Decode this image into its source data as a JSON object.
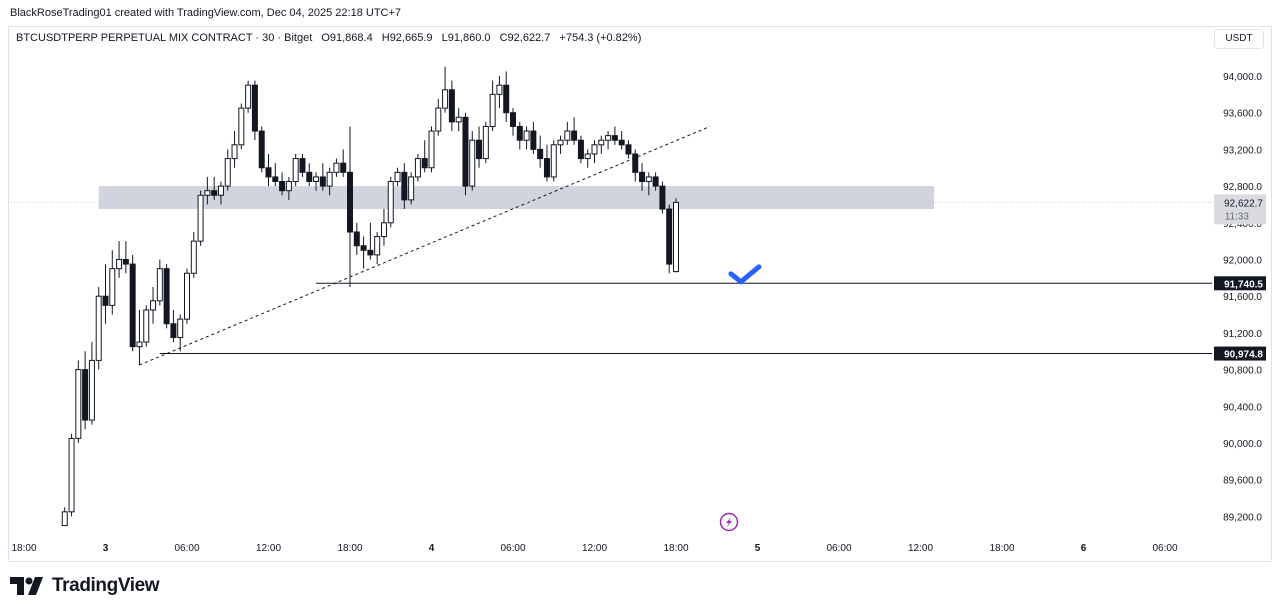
{
  "caption": "BlackRoseTrading01 created with TradingView.com, Dec 04, 2025 22:18 UTC+7",
  "legend": {
    "symbol": "BTCUSDTPERP PERPETUAL MIX CONTRACT · 30 · Bitget",
    "open": "O91,868.4",
    "high": "H92,665.9",
    "low": "L91,860.0",
    "close": "C92,622.7",
    "change": "+754.3 (+0.82%)"
  },
  "currency": "USDT",
  "brand": "TradingView",
  "colors": {
    "candle": "#131722",
    "zone": "#d1d4dc",
    "checkmark": "#2962ff",
    "flash_icon": "#9c27b0",
    "axis_text": "#131722",
    "grid_border": "#e0e3eb"
  },
  "chart_data": {
    "type": "candlestick",
    "interval": "30",
    "ylim": [
      89050,
      94400
    ],
    "y_ticks": [
      94000,
      93600,
      93200,
      92800,
      92400,
      92000,
      91600,
      91200,
      90800,
      90400,
      90000,
      89600,
      89200
    ],
    "y_tick_labels": [
      "94,000.0",
      "93,600.0",
      "93,200.0",
      "92,800.0",
      "92,400.0",
      "92,000.0",
      "91,600.0",
      "91,200.0",
      "90,800.0",
      "90,400.0",
      "90,000.0",
      "89,600.0",
      "89,200.0"
    ],
    "x_labels": [
      {
        "label": "18:00",
        "t": "2025-12-02 18:00"
      },
      {
        "label": "3",
        "t": "2025-12-03 00:00"
      },
      {
        "label": "06:00",
        "t": "2025-12-03 06:00"
      },
      {
        "label": "12:00",
        "t": "2025-12-03 12:00"
      },
      {
        "label": "18:00",
        "t": "2025-12-03 18:00"
      },
      {
        "label": "4",
        "t": "2025-12-04 00:00"
      },
      {
        "label": "06:00",
        "t": "2025-12-04 06:00"
      },
      {
        "label": "12:00",
        "t": "2025-12-04 12:00"
      },
      {
        "label": "18:00",
        "t": "2025-12-04 18:00"
      },
      {
        "label": "5",
        "t": "2025-12-05 00:00"
      },
      {
        "label": "06:00",
        "t": "2025-12-05 06:00"
      },
      {
        "label": "12:00",
        "t": "2025-12-05 12:00"
      },
      {
        "label": "18:00",
        "t": "2025-12-05 18:00"
      },
      {
        "label": "6",
        "t": "2025-12-06 00:00"
      },
      {
        "label": "06:00",
        "t": "2025-12-06 06:00"
      }
    ],
    "candles": [
      {
        "t": "2025-12-02 21:00",
        "o": 89100,
        "h": 89300,
        "l": 89100,
        "c": 89250
      },
      {
        "t": "2025-12-02 21:30",
        "o": 89250,
        "h": 90100,
        "l": 89200,
        "c": 90050
      },
      {
        "t": "2025-12-02 22:00",
        "o": 90050,
        "h": 90900,
        "l": 90000,
        "c": 90800
      },
      {
        "t": "2025-12-02 22:30",
        "o": 90800,
        "h": 91000,
        "l": 90150,
        "c": 90250
      },
      {
        "t": "2025-12-02 23:00",
        "o": 90250,
        "h": 91100,
        "l": 90200,
        "c": 90900
      },
      {
        "t": "2025-12-02 23:30",
        "o": 90900,
        "h": 91700,
        "l": 90800,
        "c": 91600
      },
      {
        "t": "2025-12-03 00:00",
        "o": 91600,
        "h": 91950,
        "l": 91300,
        "c": 91500
      },
      {
        "t": "2025-12-03 00:30",
        "o": 91500,
        "h": 92100,
        "l": 91400,
        "c": 91900
      },
      {
        "t": "2025-12-03 01:00",
        "o": 91900,
        "h": 92200,
        "l": 91800,
        "c": 92000
      },
      {
        "t": "2025-12-03 01:30",
        "o": 92000,
        "h": 92200,
        "l": 91850,
        "c": 91950
      },
      {
        "t": "2025-12-03 02:00",
        "o": 91950,
        "h": 92050,
        "l": 91000,
        "c": 91050
      },
      {
        "t": "2025-12-03 02:30",
        "o": 91050,
        "h": 91450,
        "l": 90850,
        "c": 91100
      },
      {
        "t": "2025-12-03 03:00",
        "o": 91100,
        "h": 91500,
        "l": 91050,
        "c": 91450
      },
      {
        "t": "2025-12-03 03:30",
        "o": 91450,
        "h": 91700,
        "l": 91300,
        "c": 91550
      },
      {
        "t": "2025-12-03 04:00",
        "o": 91550,
        "h": 92000,
        "l": 91500,
        "c": 91900
      },
      {
        "t": "2025-12-03 04:30",
        "o": 91900,
        "h": 91950,
        "l": 91250,
        "c": 91300
      },
      {
        "t": "2025-12-03 05:00",
        "o": 91300,
        "h": 91450,
        "l": 91100,
        "c": 91150
      },
      {
        "t": "2025-12-03 05:30",
        "o": 91150,
        "h": 91400,
        "l": 91000,
        "c": 91350
      },
      {
        "t": "2025-12-03 06:00",
        "o": 91350,
        "h": 91900,
        "l": 91300,
        "c": 91850
      },
      {
        "t": "2025-12-03 06:30",
        "o": 91850,
        "h": 92300,
        "l": 91800,
        "c": 92200
      },
      {
        "t": "2025-12-03 07:00",
        "o": 92200,
        "h": 92750,
        "l": 92150,
        "c": 92700
      },
      {
        "t": "2025-12-03 07:30",
        "o": 92700,
        "h": 92900,
        "l": 92600,
        "c": 92750
      },
      {
        "t": "2025-12-03 08:00",
        "o": 92750,
        "h": 92900,
        "l": 92650,
        "c": 92700
      },
      {
        "t": "2025-12-03 08:30",
        "o": 92700,
        "h": 92850,
        "l": 92600,
        "c": 92800
      },
      {
        "t": "2025-12-03 09:00",
        "o": 92800,
        "h": 93200,
        "l": 92750,
        "c": 93100
      },
      {
        "t": "2025-12-03 09:30",
        "o": 93100,
        "h": 93400,
        "l": 93000,
        "c": 93250
      },
      {
        "t": "2025-12-03 10:00",
        "o": 93250,
        "h": 93700,
        "l": 93200,
        "c": 93650
      },
      {
        "t": "2025-12-03 10:30",
        "o": 93650,
        "h": 93950,
        "l": 93600,
        "c": 93900
      },
      {
        "t": "2025-12-03 11:00",
        "o": 93900,
        "h": 93950,
        "l": 93300,
        "c": 93400
      },
      {
        "t": "2025-12-03 11:30",
        "o": 93400,
        "h": 93450,
        "l": 92950,
        "c": 93000
      },
      {
        "t": "2025-12-03 12:00",
        "o": 93000,
        "h": 93150,
        "l": 92800,
        "c": 92900
      },
      {
        "t": "2025-12-03 12:30",
        "o": 92900,
        "h": 93050,
        "l": 92800,
        "c": 92850
      },
      {
        "t": "2025-12-03 13:00",
        "o": 92850,
        "h": 92950,
        "l": 92700,
        "c": 92750
      },
      {
        "t": "2025-12-03 13:30",
        "o": 92750,
        "h": 92900,
        "l": 92650,
        "c": 92850
      },
      {
        "t": "2025-12-03 14:00",
        "o": 92850,
        "h": 93150,
        "l": 92800,
        "c": 93100
      },
      {
        "t": "2025-12-03 14:30",
        "o": 93100,
        "h": 93150,
        "l": 92900,
        "c": 92950
      },
      {
        "t": "2025-12-03 15:00",
        "o": 92950,
        "h": 93050,
        "l": 92800,
        "c": 92850
      },
      {
        "t": "2025-12-03 15:30",
        "o": 92850,
        "h": 92950,
        "l": 92750,
        "c": 92900
      },
      {
        "t": "2025-12-03 16:00",
        "o": 92900,
        "h": 93050,
        "l": 92750,
        "c": 92800
      },
      {
        "t": "2025-12-03 16:30",
        "o": 92800,
        "h": 93000,
        "l": 92700,
        "c": 92950
      },
      {
        "t": "2025-12-03 17:00",
        "o": 92950,
        "h": 93100,
        "l": 92900,
        "c": 93050
      },
      {
        "t": "2025-12-03 17:30",
        "o": 93050,
        "h": 93200,
        "l": 92900,
        "c": 92950
      },
      {
        "t": "2025-12-03 18:00",
        "o": 92950,
        "h": 93450,
        "l": 91700,
        "c": 92300
      },
      {
        "t": "2025-12-03 18:30",
        "o": 92300,
        "h": 92400,
        "l": 92050,
        "c": 92150
      },
      {
        "t": "2025-12-03 19:00",
        "o": 92150,
        "h": 92250,
        "l": 91900,
        "c": 92100
      },
      {
        "t": "2025-12-03 19:30",
        "o": 92100,
        "h": 92400,
        "l": 92000,
        "c": 92050
      },
      {
        "t": "2025-12-03 20:00",
        "o": 92050,
        "h": 92300,
        "l": 91950,
        "c": 92250
      },
      {
        "t": "2025-12-03 20:30",
        "o": 92250,
        "h": 92550,
        "l": 92150,
        "c": 92400
      },
      {
        "t": "2025-12-03 21:00",
        "o": 92400,
        "h": 92900,
        "l": 92350,
        "c": 92850
      },
      {
        "t": "2025-12-03 21:30",
        "o": 92850,
        "h": 93000,
        "l": 92800,
        "c": 92950
      },
      {
        "t": "2025-12-03 22:00",
        "o": 92950,
        "h": 93050,
        "l": 92550,
        "c": 92650
      },
      {
        "t": "2025-12-03 22:30",
        "o": 92650,
        "h": 92950,
        "l": 92600,
        "c": 92900
      },
      {
        "t": "2025-12-03 23:00",
        "o": 92900,
        "h": 93150,
        "l": 92850,
        "c": 93100
      },
      {
        "t": "2025-12-03 23:30",
        "o": 93100,
        "h": 93300,
        "l": 92950,
        "c": 93000
      },
      {
        "t": "2025-12-04 00:00",
        "o": 93000,
        "h": 93450,
        "l": 92950,
        "c": 93400
      },
      {
        "t": "2025-12-04 00:30",
        "o": 93400,
        "h": 93750,
        "l": 93350,
        "c": 93650
      },
      {
        "t": "2025-12-04 01:00",
        "o": 93650,
        "h": 94100,
        "l": 93600,
        "c": 93850
      },
      {
        "t": "2025-12-04 01:30",
        "o": 93850,
        "h": 93950,
        "l": 93400,
        "c": 93500
      },
      {
        "t": "2025-12-04 02:00",
        "o": 93500,
        "h": 93650,
        "l": 93400,
        "c": 93550
      },
      {
        "t": "2025-12-04 02:30",
        "o": 93550,
        "h": 93600,
        "l": 92700,
        "c": 92800
      },
      {
        "t": "2025-12-04 03:00",
        "o": 92800,
        "h": 93400,
        "l": 92750,
        "c": 93300
      },
      {
        "t": "2025-12-04 03:30",
        "o": 93300,
        "h": 93450,
        "l": 93000,
        "c": 93100
      },
      {
        "t": "2025-12-04 04:00",
        "o": 93100,
        "h": 93500,
        "l": 93050,
        "c": 93450
      },
      {
        "t": "2025-12-04 04:30",
        "o": 93450,
        "h": 93950,
        "l": 93400,
        "c": 93800
      },
      {
        "t": "2025-12-04 05:00",
        "o": 93800,
        "h": 94000,
        "l": 93650,
        "c": 93900
      },
      {
        "t": "2025-12-04 05:30",
        "o": 93900,
        "h": 94050,
        "l": 93500,
        "c": 93600
      },
      {
        "t": "2025-12-04 06:00",
        "o": 93600,
        "h": 93650,
        "l": 93350,
        "c": 93450
      },
      {
        "t": "2025-12-04 06:30",
        "o": 93450,
        "h": 93500,
        "l": 93200,
        "c": 93300
      },
      {
        "t": "2025-12-04 07:00",
        "o": 93300,
        "h": 93450,
        "l": 93200,
        "c": 93400
      },
      {
        "t": "2025-12-04 07:30",
        "o": 93400,
        "h": 93500,
        "l": 93150,
        "c": 93200
      },
      {
        "t": "2025-12-04 08:00",
        "o": 93200,
        "h": 93350,
        "l": 93000,
        "c": 93100
      },
      {
        "t": "2025-12-04 08:30",
        "o": 93100,
        "h": 93250,
        "l": 92850,
        "c": 92900
      },
      {
        "t": "2025-12-04 09:00",
        "o": 92900,
        "h": 93300,
        "l": 92850,
        "c": 93250
      },
      {
        "t": "2025-12-04 09:30",
        "o": 93250,
        "h": 93350,
        "l": 93150,
        "c": 93300
      },
      {
        "t": "2025-12-04 10:00",
        "o": 93300,
        "h": 93500,
        "l": 93250,
        "c": 93400
      },
      {
        "t": "2025-12-04 10:30",
        "o": 93400,
        "h": 93550,
        "l": 93250,
        "c": 93300
      },
      {
        "t": "2025-12-04 11:00",
        "o": 93300,
        "h": 93350,
        "l": 93050,
        "c": 93100
      },
      {
        "t": "2025-12-04 11:30",
        "o": 93100,
        "h": 93200,
        "l": 93000,
        "c": 93150
      },
      {
        "t": "2025-12-04 12:00",
        "o": 93150,
        "h": 93300,
        "l": 93050,
        "c": 93250
      },
      {
        "t": "2025-12-04 12:30",
        "o": 93250,
        "h": 93350,
        "l": 93150,
        "c": 93300
      },
      {
        "t": "2025-12-04 13:00",
        "o": 93300,
        "h": 93400,
        "l": 93200,
        "c": 93350
      },
      {
        "t": "2025-12-04 13:30",
        "o": 93350,
        "h": 93450,
        "l": 93250,
        "c": 93300
      },
      {
        "t": "2025-12-04 14:00",
        "o": 93300,
        "h": 93400,
        "l": 93200,
        "c": 93250
      },
      {
        "t": "2025-12-04 14:30",
        "o": 93250,
        "h": 93300,
        "l": 93100,
        "c": 93150
      },
      {
        "t": "2025-12-04 15:00",
        "o": 93150,
        "h": 93200,
        "l": 92850,
        "c": 92950
      },
      {
        "t": "2025-12-04 15:30",
        "o": 92950,
        "h": 93050,
        "l": 92750,
        "c": 92850
      },
      {
        "t": "2025-12-04 16:00",
        "o": 92850,
        "h": 92950,
        "l": 92700,
        "c": 92900
      },
      {
        "t": "2025-12-04 16:30",
        "o": 92900,
        "h": 92950,
        "l": 92750,
        "c": 92800
      },
      {
        "t": "2025-12-04 17:00",
        "o": 92800,
        "h": 92850,
        "l": 92500,
        "c": 92550
      },
      {
        "t": "2025-12-04 17:30",
        "o": 92550,
        "h": 92600,
        "l": 91850,
        "c": 91950
      },
      {
        "t": "2025-12-04 18:00",
        "o": 91868.4,
        "h": 92665.9,
        "l": 91860.0,
        "c": 92622.7
      }
    ],
    "support_zone": {
      "low": 92550,
      "high": 92800,
      "from": "2025-12-02 23:30",
      "to": "2025-12-05 13:00"
    },
    "trendline": {
      "from": {
        "t": "2025-12-03 02:30",
        "price": 90850
      },
      "to": {
        "t": "2025-12-04 20:30",
        "price": 93450
      }
    },
    "horizontal_lines": [
      {
        "price": 91740.5,
        "label": "91,740.5",
        "from": "2025-12-03 15:30"
      },
      {
        "price": 90974.8,
        "label": "90,974.8",
        "from": "2025-12-03 04:00"
      }
    ],
    "last_price": {
      "value": 92622.7,
      "label": "92,622.7",
      "countdown": "11:33"
    },
    "checkmark": {
      "t": "2025-12-04 23:00",
      "price": 91800
    }
  }
}
